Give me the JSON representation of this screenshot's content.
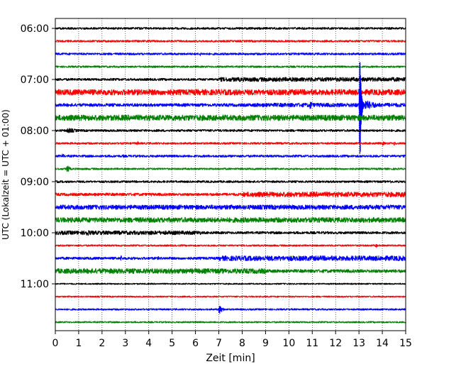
{
  "chart_data": {
    "type": "line",
    "subtype": "helicorder",
    "xlabel": "Zeit  [min]",
    "ylabel": "UTC (Lokalzeit = UTC + 01:00)",
    "xlim": [
      0,
      15
    ],
    "x_ticks": [
      0,
      1,
      2,
      3,
      4,
      5,
      6,
      7,
      8,
      9,
      10,
      11,
      12,
      13,
      14,
      15
    ],
    "x_tick_labels": [
      "0",
      "1",
      "2",
      "3",
      "4",
      "5",
      "6",
      "7",
      "8",
      "9",
      "10",
      "11",
      "12",
      "13",
      "14",
      "15"
    ],
    "y_tick_labels": [
      "06:00",
      "07:00",
      "08:00",
      "09:00",
      "10:00",
      "11:00"
    ],
    "y_tick_rows": [
      0,
      4,
      8,
      12,
      16,
      20
    ],
    "grid": "vertical dotted",
    "colors": [
      "#000000",
      "#ff0000",
      "#0000ff",
      "#008000"
    ],
    "rows": [
      {
        "amp": 1.5,
        "events": [
          [
            3.8,
            1.2,
            0.3
          ],
          [
            8.5,
            1.5,
            0.4
          ],
          [
            14.9,
            2,
            0.2
          ]
        ]
      },
      {
        "amp": 1.4,
        "events": []
      },
      {
        "amp": 1.5,
        "events": [
          [
            6.2,
            3,
            0.1
          ]
        ]
      },
      {
        "amp": 1.3,
        "events": []
      },
      {
        "amp": 1.7,
        "events": [],
        "band": [
          7.0,
          15,
          3.0
        ]
      },
      {
        "amp": 4.0,
        "events": []
      },
      {
        "amp": 2.2,
        "events": [
          [
            10.9,
            7,
            0.15
          ],
          [
            13.1,
            10,
            0.6
          ]
        ],
        "band": [
          8.5,
          15,
          2.8
        ],
        "quake": [
          13.0,
          95,
          100
        ]
      },
      {
        "amp": 4.0,
        "events": []
      },
      {
        "amp": 1.6,
        "events": [
          [
            0.5,
            4,
            0.6
          ]
        ]
      },
      {
        "amp": 1.4,
        "events": [
          [
            3.5,
            4,
            0.08
          ],
          [
            14.0,
            4,
            0.1
          ],
          [
            14.5,
            4,
            0.1
          ]
        ]
      },
      {
        "amp": 1.6,
        "events": [
          [
            0.3,
            4,
            0.1
          ],
          [
            2.9,
            3,
            0.1
          ],
          [
            7.2,
            3,
            0.1
          ]
        ]
      },
      {
        "amp": 1.3,
        "events": [
          [
            0.5,
            8,
            0.1
          ]
        ]
      },
      {
        "amp": 1.5,
        "events": [
          [
            14.3,
            4,
            0.1
          ]
        ]
      },
      {
        "amp": 2.0,
        "events": [
          [
            1.7,
            3,
            0.08
          ],
          [
            2.4,
            3,
            0.08
          ],
          [
            4.1,
            3,
            0.08
          ],
          [
            6.9,
            3,
            0.08
          ]
        ],
        "band": [
          8.0,
          15,
          3.5
        ]
      },
      {
        "amp": 3.2,
        "events": []
      },
      {
        "amp": 3.5,
        "events": [
          [
            7.5,
            4,
            0.3
          ],
          [
            14.3,
            4,
            0.1
          ]
        ]
      },
      {
        "amp": 1.8,
        "events": [
          [
            1.3,
            5,
            0.4
          ],
          [
            4.0,
            4,
            0.5
          ],
          [
            6.2,
            3,
            0.1
          ]
        ],
        "band": [
          0.0,
          6.2,
          2.8
        ]
      },
      {
        "amp": 1.2,
        "events": [
          [
            13.7,
            4,
            0.1
          ]
        ]
      },
      {
        "amp": 1.8,
        "events": [
          [
            2.8,
            5,
            0.1
          ],
          [
            4.4,
            3,
            0.1
          ]
        ],
        "band": [
          7.0,
          15,
          3.5
        ]
      },
      {
        "amp": 2.3,
        "events": [],
        "band": [
          0.0,
          9.0,
          3.5
        ]
      },
      {
        "amp": 1.0,
        "events": []
      },
      {
        "amp": 1.0,
        "events": []
      },
      {
        "amp": 1.2,
        "events": [
          [
            7.0,
            8,
            0.15
          ]
        ]
      },
      {
        "amp": 1.1,
        "events": []
      }
    ]
  }
}
